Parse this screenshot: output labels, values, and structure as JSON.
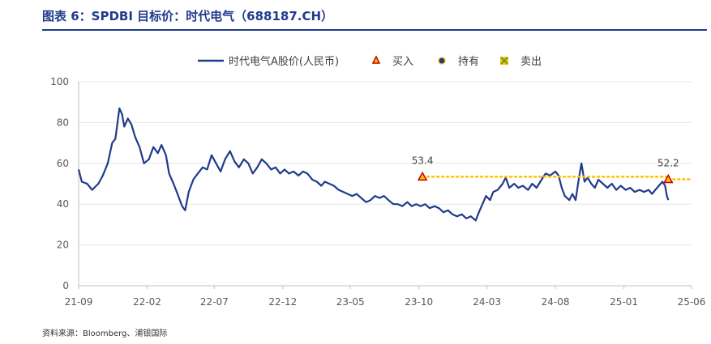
{
  "header": {
    "title": "图表 6：SPDBI 目标价：时代电气（688187.CH）"
  },
  "footer": {
    "source": "资料来源：Bloomberg、浦银国际"
  },
  "colors": {
    "title": "#1f3b8c",
    "price_line": "#1f3b8c",
    "buy_marker": "#c00000",
    "buy_marker_fill": "#ffc000",
    "target_line": "#ffc000",
    "hold_marker": "#1f3b8c",
    "sell_marker": "#ffc000",
    "axis_text": "#595959",
    "grid": "#e6e6e6"
  },
  "chart_data": {
    "type": "line",
    "legend": {
      "placement": "top",
      "items": [
        {
          "label": "时代电气A股价(人民币)",
          "kind": "line"
        },
        {
          "label": "买入",
          "kind": "triangle"
        },
        {
          "label": "持有",
          "kind": "circle"
        },
        {
          "label": "卖出",
          "kind": "cross"
        }
      ]
    },
    "y_axis": {
      "min": 0,
      "max": 100,
      "ticks": [
        0,
        20,
        40,
        60,
        80,
        100
      ]
    },
    "x_axis": {
      "start": "2021-09",
      "end": "2025-06",
      "tick_labels": [
        "21-09",
        "22-02",
        "22-07",
        "22-12",
        "23-05",
        "23-10",
        "24-03",
        "24-08",
        "25-01",
        "25-06"
      ],
      "tick_months": [
        0,
        5,
        10,
        15,
        20,
        25,
        30,
        35,
        40,
        45
      ]
    },
    "grid": "horizontal",
    "series": [
      {
        "name": "时代电气A股价(人民币)",
        "points": [
          [
            "2021-09-01",
            57
          ],
          [
            "2021-09-08",
            51
          ],
          [
            "2021-09-20",
            50
          ],
          [
            "2021-10-01",
            47
          ],
          [
            "2021-10-15",
            50
          ],
          [
            "2021-10-25",
            54
          ],
          [
            "2021-11-05",
            60
          ],
          [
            "2021-11-15",
            70
          ],
          [
            "2021-11-22",
            72
          ],
          [
            "2021-12-01",
            87
          ],
          [
            "2021-12-07",
            84
          ],
          [
            "2021-12-12",
            78
          ],
          [
            "2021-12-20",
            82
          ],
          [
            "2021-12-28",
            79
          ],
          [
            "2022-01-05",
            73
          ],
          [
            "2022-01-15",
            68
          ],
          [
            "2022-01-25",
            60
          ],
          [
            "2022-02-05",
            62
          ],
          [
            "2022-02-15",
            68
          ],
          [
            "2022-02-25",
            65
          ],
          [
            "2022-03-05",
            69
          ],
          [
            "2022-03-15",
            64
          ],
          [
            "2022-03-22",
            55
          ],
          [
            "2022-04-01",
            50
          ],
          [
            "2022-04-10",
            45
          ],
          [
            "2022-04-20",
            39
          ],
          [
            "2022-04-27",
            37
          ],
          [
            "2022-05-05",
            46
          ],
          [
            "2022-05-15",
            52
          ],
          [
            "2022-05-25",
            55
          ],
          [
            "2022-06-05",
            58
          ],
          [
            "2022-06-15",
            57
          ],
          [
            "2022-06-25",
            64
          ],
          [
            "2022-07-05",
            60
          ],
          [
            "2022-07-15",
            56
          ],
          [
            "2022-07-25",
            62
          ],
          [
            "2022-08-05",
            66
          ],
          [
            "2022-08-15",
            61
          ],
          [
            "2022-08-25",
            58
          ],
          [
            "2022-09-05",
            62
          ],
          [
            "2022-09-15",
            60
          ],
          [
            "2022-09-25",
            55
          ],
          [
            "2022-10-05",
            58
          ],
          [
            "2022-10-15",
            62
          ],
          [
            "2022-10-25",
            60
          ],
          [
            "2022-11-05",
            57
          ],
          [
            "2022-11-15",
            58
          ],
          [
            "2022-11-25",
            55
          ],
          [
            "2022-12-05",
            57
          ],
          [
            "2022-12-15",
            55
          ],
          [
            "2022-12-25",
            56
          ],
          [
            "2023-01-05",
            54
          ],
          [
            "2023-01-15",
            56
          ],
          [
            "2023-01-25",
            55
          ],
          [
            "2023-02-05",
            52
          ],
          [
            "2023-02-15",
            51
          ],
          [
            "2023-02-25",
            49
          ],
          [
            "2023-03-05",
            51
          ],
          [
            "2023-03-15",
            50
          ],
          [
            "2023-03-25",
            49
          ],
          [
            "2023-04-05",
            47
          ],
          [
            "2023-04-15",
            46
          ],
          [
            "2023-04-25",
            45
          ],
          [
            "2023-05-05",
            44
          ],
          [
            "2023-05-15",
            45
          ],
          [
            "2023-05-25",
            43
          ],
          [
            "2023-06-05",
            41
          ],
          [
            "2023-06-15",
            42
          ],
          [
            "2023-06-25",
            44
          ],
          [
            "2023-07-05",
            43
          ],
          [
            "2023-07-15",
            44
          ],
          [
            "2023-07-25",
            42
          ],
          [
            "2023-08-05",
            40
          ],
          [
            "2023-08-15",
            40
          ],
          [
            "2023-08-25",
            39
          ],
          [
            "2023-09-05",
            41
          ],
          [
            "2023-09-15",
            39
          ],
          [
            "2023-09-25",
            40
          ],
          [
            "2023-10-05",
            39
          ],
          [
            "2023-10-15",
            40
          ],
          [
            "2023-10-25",
            38
          ],
          [
            "2023-11-05",
            39
          ],
          [
            "2023-11-15",
            38
          ],
          [
            "2023-11-25",
            36
          ],
          [
            "2023-12-05",
            37
          ],
          [
            "2023-12-15",
            35
          ],
          [
            "2023-12-25",
            34
          ],
          [
            "2024-01-05",
            35
          ],
          [
            "2024-01-15",
            33
          ],
          [
            "2024-01-25",
            34
          ],
          [
            "2024-02-05",
            32
          ],
          [
            "2024-02-12",
            36
          ],
          [
            "2024-02-20",
            40
          ],
          [
            "2024-02-28",
            44
          ],
          [
            "2024-03-08",
            42
          ],
          [
            "2024-03-15",
            46
          ],
          [
            "2024-03-25",
            47
          ],
          [
            "2024-04-05",
            50
          ],
          [
            "2024-04-12",
            53
          ],
          [
            "2024-04-20",
            48
          ],
          [
            "2024-05-01",
            50
          ],
          [
            "2024-05-10",
            48
          ],
          [
            "2024-05-20",
            49
          ],
          [
            "2024-06-01",
            47
          ],
          [
            "2024-06-10",
            50
          ],
          [
            "2024-06-20",
            48
          ],
          [
            "2024-07-01",
            52
          ],
          [
            "2024-07-10",
            55
          ],
          [
            "2024-07-20",
            54
          ],
          [
            "2024-08-01",
            56
          ],
          [
            "2024-08-08",
            54
          ],
          [
            "2024-08-15",
            48
          ],
          [
            "2024-08-22",
            44
          ],
          [
            "2024-09-01",
            42
          ],
          [
            "2024-09-08",
            45
          ],
          [
            "2024-09-15",
            42
          ],
          [
            "2024-09-22",
            52
          ],
          [
            "2024-09-28",
            60
          ],
          [
            "2024-10-05",
            51
          ],
          [
            "2024-10-12",
            53
          ],
          [
            "2024-10-20",
            50
          ],
          [
            "2024-10-28",
            48
          ],
          [
            "2024-11-05",
            52
          ],
          [
            "2024-11-15",
            50
          ],
          [
            "2024-11-25",
            48
          ],
          [
            "2024-12-05",
            50
          ],
          [
            "2024-12-15",
            47
          ],
          [
            "2024-12-25",
            49
          ],
          [
            "2025-01-05",
            47
          ],
          [
            "2025-01-15",
            48
          ],
          [
            "2025-01-25",
            46
          ],
          [
            "2025-02-05",
            47
          ],
          [
            "2025-02-15",
            46
          ],
          [
            "2025-02-25",
            47
          ],
          [
            "2025-03-05",
            45
          ],
          [
            "2025-03-12",
            47
          ],
          [
            "2025-03-20",
            49
          ],
          [
            "2025-03-28",
            51
          ],
          [
            "2025-04-03",
            49
          ],
          [
            "2025-04-07",
            44
          ],
          [
            "2025-04-10",
            42
          ]
        ]
      }
    ],
    "buy_ratings": [
      {
        "date": "2023-10-09",
        "target": 53.4,
        "label": "53.4"
      },
      {
        "date": "2025-04-10",
        "target": 52.2,
        "label": "52.2"
      }
    ],
    "target_line": {
      "start": "2023-10-09",
      "end": "2025-06-25"
    }
  }
}
